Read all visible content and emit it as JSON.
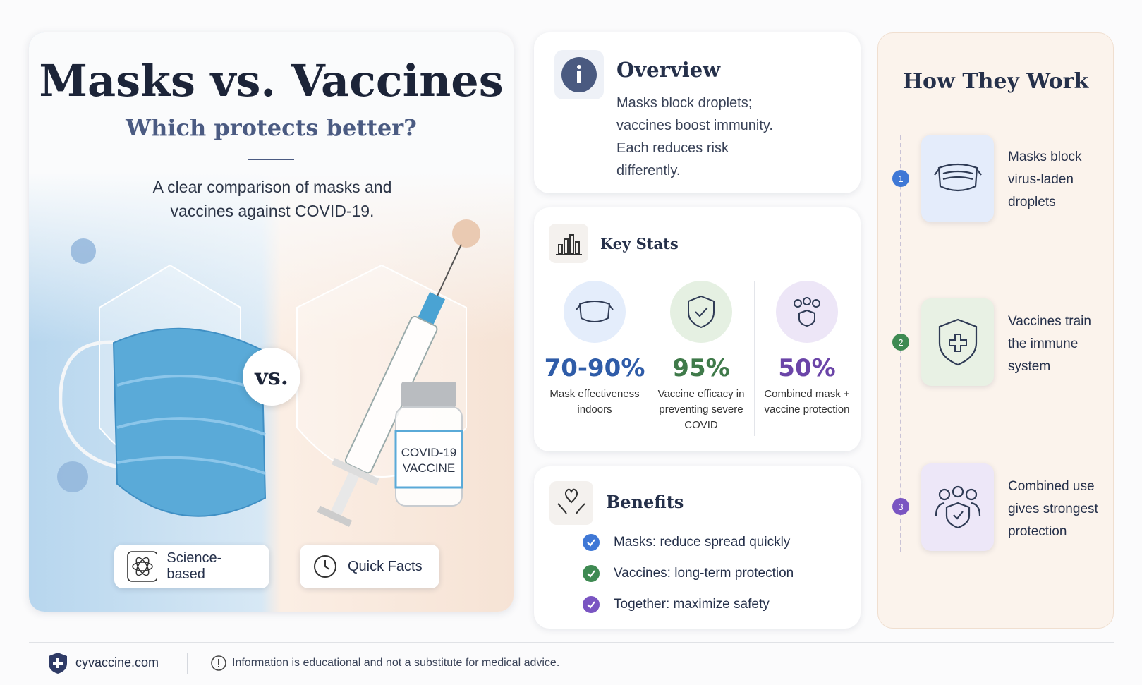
{
  "hero": {
    "title": "Masks vs. Vaccines",
    "subtitle": "Which protects better?",
    "description": "A clear comparison of masks and vaccines against COVID-19.",
    "vs": "vs.",
    "vial_label": [
      "COVID-19",
      "VACCINE"
    ],
    "badges": [
      "Science-based",
      "Quick Facts"
    ]
  },
  "overview": {
    "title": "Overview",
    "text": "Masks block droplets; vaccines boost immunity. Each reduces risk differently."
  },
  "key_stats": {
    "title": "Key Stats",
    "stats": [
      {
        "value": "70-90%",
        "label": "Mask effectiveness indoors"
      },
      {
        "value": "95%",
        "label": "Vaccine efficacy in preventing severe COVID"
      },
      {
        "value": "50%",
        "label": "Combined mask + vaccine protection"
      }
    ]
  },
  "benefits": {
    "title": "Benefits",
    "items": [
      {
        "lead": "Masks:",
        "text": "reduce spread quickly"
      },
      {
        "lead": "Vaccines:",
        "text": "long-term protection"
      },
      {
        "lead": "Together:",
        "text": "maximize safety"
      }
    ]
  },
  "how_they_work": {
    "title": "How They Work",
    "steps": [
      {
        "number": "1",
        "text": "Masks block virus-laden droplets"
      },
      {
        "number": "2",
        "text": "Vaccines train the immune system"
      },
      {
        "number": "3",
        "text": "Combined use gives strongest protection"
      }
    ]
  },
  "footer": {
    "site": "cyvaccine.com",
    "disclaimer": "Information is educational and not a substitute for medical advice."
  }
}
